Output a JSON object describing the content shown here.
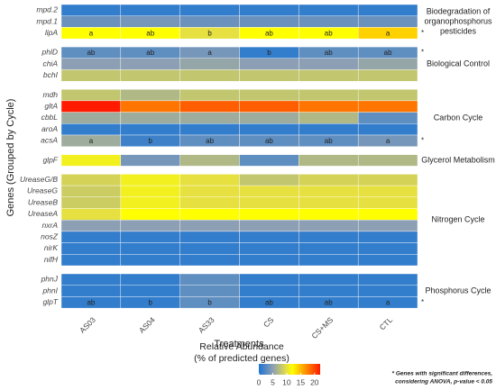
{
  "chart_data": {
    "type": "heatmap",
    "xlabel": "Treatments",
    "ylabel": "Genes (Grouped by Cycle)",
    "categories": [
      "AS03",
      "AS04",
      "AS33",
      "CS",
      "CS+MS",
      "CTL"
    ],
    "groups": [
      {
        "label_lines": [
          "Biodegradation of",
          "organophosphorus",
          "pesticides"
        ],
        "rows": [
          {
            "gene": "mpd.2",
            "values": [
              1,
              1,
              1,
              1,
              1,
              1
            ]
          },
          {
            "gene": "mpd.1",
            "values": [
              3.5,
              4,
              3.5,
              3.5,
              3.5,
              3.5
            ]
          },
          {
            "gene": "lipA",
            "values": [
              12,
              12,
              10,
              12,
              12,
              14
            ],
            "letters": [
              "a",
              "ab",
              "b",
              "ab",
              "ab",
              "a"
            ],
            "marker": "*"
          }
        ]
      },
      {
        "label_lines": [
          "Biological Control"
        ],
        "rows": [
          {
            "gene": "phlD",
            "values": [
              3,
              3,
              4,
              1,
              3,
              3
            ],
            "letters": [
              "ab",
              "ab",
              "a",
              "b",
              "ab",
              "ab"
            ],
            "marker": "*"
          },
          {
            "gene": "chiA",
            "values": [
              5,
              5,
              5.5,
              5,
              5,
              5.5
            ]
          },
          {
            "gene": "bchI",
            "values": [
              8,
              8,
              8,
              8,
              8,
              8
            ]
          }
        ]
      },
      {
        "label_lines": [
          "Carbon Cycle"
        ],
        "rows": [
          {
            "gene": "mdh",
            "values": [
              8,
              7,
              8,
              8,
              8,
              8
            ]
          },
          {
            "gene": "gltA",
            "values": [
              22,
              18,
              19,
              19,
              18,
              18
            ]
          },
          {
            "gene": "cbbL",
            "values": [
              6,
              6,
              6,
              6,
              7,
              3
            ]
          },
          {
            "gene": "aroA",
            "values": [
              1,
              1,
              1,
              1,
              1,
              1
            ]
          },
          {
            "gene": "acsA",
            "values": [
              6,
              1.5,
              3,
              3,
              3,
              4
            ],
            "letters": [
              "a",
              "b",
              "ab",
              "ab",
              "ab",
              "a"
            ],
            "marker": "*"
          }
        ]
      },
      {
        "label_lines": [
          "Glycerol Metabolism"
        ],
        "rows": [
          {
            "gene": "glpF",
            "values": [
              11,
              4,
              7,
              3,
              7,
              7
            ]
          }
        ]
      },
      {
        "label_lines": [
          "Nitrogen Cycle"
        ],
        "rows": [
          {
            "gene": "UreaseG/B",
            "values": [
              9,
              11,
              10,
              8,
              9,
              9
            ]
          },
          {
            "gene": "UreaseG",
            "values": [
              8.5,
              11,
              10,
              10,
              10,
              10
            ]
          },
          {
            "gene": "UreaseB",
            "values": [
              8.5,
              11,
              10,
              10,
              10,
              10
            ]
          },
          {
            "gene": "UreaseA",
            "values": [
              10,
              12,
              12,
              12,
              12,
              12
            ]
          },
          {
            "gene": "nxrA",
            "values": [
              5,
              5,
              5,
              5,
              5,
              5
            ]
          },
          {
            "gene": "nosZ",
            "values": [
              1,
              1,
              1,
              1,
              1,
              1
            ]
          },
          {
            "gene": "nirK",
            "values": [
              1,
              1,
              1,
              1,
              1,
              1
            ]
          },
          {
            "gene": "nifH",
            "values": [
              1,
              1,
              1,
              1,
              1,
              1
            ]
          }
        ]
      },
      {
        "label_lines": [
          "Phosphorus Cycle"
        ],
        "rows": [
          {
            "gene": "phnJ",
            "values": [
              1,
              1,
              3,
              1,
              1,
              1
            ]
          },
          {
            "gene": "phnI",
            "values": [
              1,
              1,
              3,
              1,
              1,
              1
            ]
          },
          {
            "gene": "glpT",
            "values": [
              1,
              1,
              3,
              1,
              1,
              1
            ],
            "letters": [
              "ab",
              "b",
              "b",
              "ab",
              "ab",
              "a"
            ],
            "marker": "*"
          }
        ]
      }
    ],
    "colorbar": {
      "title_lines": [
        "Relative Abundance",
        "(% of predicted genes)"
      ],
      "lim": [
        0,
        22
      ],
      "ticks": [
        0,
        5,
        10,
        15,
        20
      ],
      "stops": [
        [
          0,
          "#1c74d2"
        ],
        [
          5,
          "#8c9fb4"
        ],
        [
          10,
          "#e6e040"
        ],
        [
          12,
          "#ffff00"
        ],
        [
          17,
          "#ff8c00"
        ],
        [
          22,
          "#ff1a00"
        ]
      ]
    },
    "footnote_lines": [
      "* Genes with significant differences,",
      "considering ANOVA, p-value < 0.05"
    ]
  }
}
